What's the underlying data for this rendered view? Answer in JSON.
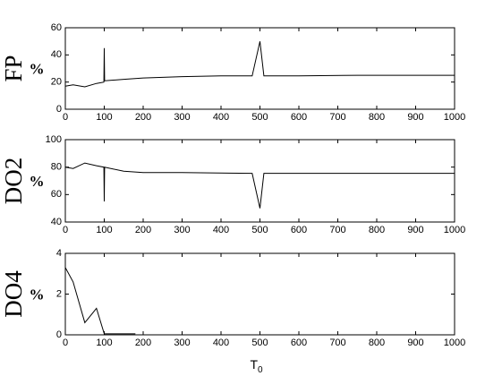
{
  "chart_data": [
    {
      "type": "line",
      "ylabel": "FP",
      "ylabel_unit": "%",
      "color": "#000000",
      "x": [
        0,
        20,
        50,
        80,
        99,
        100,
        101,
        150,
        200,
        300,
        400,
        480,
        500,
        510,
        600,
        750,
        1000
      ],
      "values": [
        17,
        18,
        16.5,
        19,
        20,
        45,
        21,
        22,
        23,
        24,
        24.5,
        24.5,
        50,
        24.5,
        24.5,
        25,
        25
      ],
      "xlim": [
        0,
        1000
      ],
      "xticks": [
        0,
        100,
        200,
        300,
        400,
        500,
        600,
        700,
        800,
        900,
        1000
      ],
      "ylim": [
        0,
        60
      ],
      "yticks": [
        0,
        20,
        40,
        60
      ]
    },
    {
      "type": "line",
      "ylabel": "DO2",
      "ylabel_unit": "%",
      "color": "#000000",
      "x": [
        0,
        20,
        50,
        80,
        99,
        100,
        101,
        150,
        200,
        300,
        480,
        500,
        510,
        1000
      ],
      "values": [
        80,
        79,
        83,
        81,
        80,
        55,
        80,
        77,
        76,
        76,
        75.5,
        50,
        75.5,
        75.5
      ],
      "xlim": [
        0,
        1000
      ],
      "xticks": [
        0,
        100,
        200,
        300,
        400,
        500,
        600,
        700,
        800,
        900,
        1000
      ],
      "ylim": [
        40,
        100
      ],
      "yticks": [
        40,
        60,
        80,
        100
      ]
    },
    {
      "type": "line",
      "ylabel": "DO4",
      "ylabel_unit": "%",
      "color": "#000000",
      "xlabel": "T",
      "xlabel_subscript": "0",
      "x": [
        0,
        20,
        50,
        80,
        100,
        120,
        180
      ],
      "values": [
        3.3,
        2.6,
        0.6,
        1.3,
        0.05,
        0.05,
        0.05
      ],
      "xlim": [
        0,
        1000
      ],
      "xticks": [
        0,
        100,
        200,
        300,
        400,
        500,
        600,
        700,
        800,
        900,
        1000
      ],
      "ylim": [
        0,
        4
      ],
      "yticks": [
        0,
        2,
        4
      ]
    }
  ]
}
